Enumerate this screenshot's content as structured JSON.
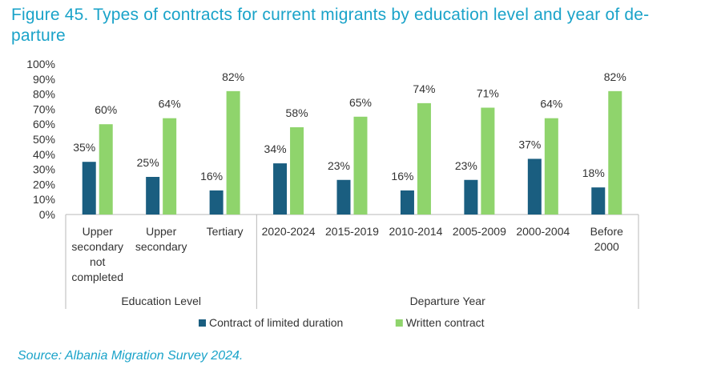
{
  "figure": {
    "title": "Figure 45. Types of contracts for current migrants by education level and year of de-parture",
    "title_line1": "Figure 45. Types of contracts for current migrants by education level and year of de-",
    "title_line2": "parture",
    "source": "Source: Albania Migration Survey 2024."
  },
  "chart_data": {
    "type": "bar",
    "title": "Types of contracts for current migrants by education level and year of departure",
    "ylim": [
      0,
      100
    ],
    "y_ticks": [
      "0%",
      "10%",
      "20%",
      "30%",
      "40%",
      "50%",
      "60%",
      "70%",
      "80%",
      "90%",
      "100%"
    ],
    "categories": [
      [
        "Upper",
        "secondary",
        "not",
        "completed"
      ],
      [
        "Upper",
        "secondary"
      ],
      [
        "Tertiary"
      ],
      [
        "2020-2024"
      ],
      [
        "2015-2019"
      ],
      [
        "2010-2014"
      ],
      [
        "2005-2009"
      ],
      [
        "2000-2004"
      ],
      [
        "Before",
        "2000"
      ]
    ],
    "groups": [
      {
        "label": "Education Level",
        "start": 0,
        "end": 2
      },
      {
        "label": "Departure Year",
        "start": 3,
        "end": 8
      }
    ],
    "series": [
      {
        "name": "Contract of limited duration",
        "color": "#1a5e80",
        "values": [
          35,
          25,
          16,
          34,
          23,
          16,
          23,
          37,
          18
        ],
        "labels": [
          "35%",
          "25%",
          "16%",
          "34%",
          "23%",
          "16%",
          "23%",
          "37%",
          "18%"
        ]
      },
      {
        "name": "Written contract",
        "color": "#8fd46c",
        "values": [
          60,
          64,
          82,
          58,
          65,
          74,
          71,
          64,
          82
        ],
        "labels": [
          "60%",
          "64%",
          "82%",
          "58%",
          "65%",
          "74%",
          "71%",
          "64%",
          "82%"
        ]
      }
    ],
    "legend_position": "bottom"
  }
}
